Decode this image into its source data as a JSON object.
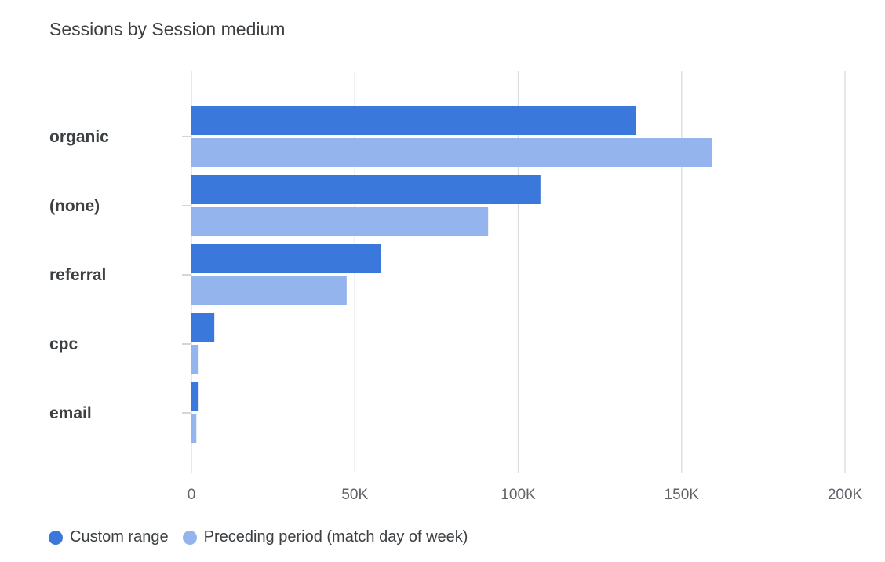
{
  "chart_data": {
    "type": "bar",
    "orientation": "horizontal",
    "title": "Sessions by Session medium",
    "categories": [
      "organic",
      "(none)",
      "referral",
      "cpc",
      "email"
    ],
    "series": [
      {
        "name": "Custom range",
        "color": "#3b78dc",
        "values": [
          136000,
          106800,
          58000,
          7000,
          2200
        ]
      },
      {
        "name": "Preceding period (match day of week)",
        "color": "#93b4ed",
        "values": [
          159200,
          90800,
          47500,
          2200,
          1500
        ]
      }
    ],
    "x_ticks": [
      0,
      50000,
      100000,
      150000,
      200000
    ],
    "x_tick_labels": [
      "0",
      "50K",
      "100K",
      "150K",
      "200K"
    ],
    "xlim": [
      0,
      200000
    ],
    "grid": true,
    "legend_position": "bottom-left"
  }
}
